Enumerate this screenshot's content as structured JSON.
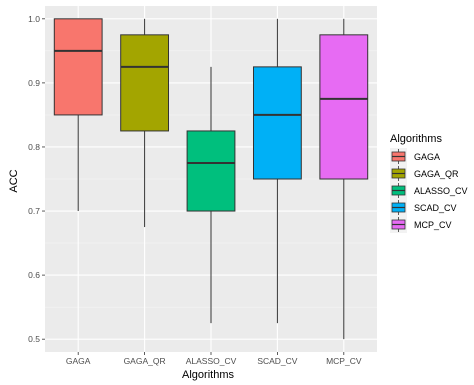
{
  "chart_data": {
    "type": "boxplot",
    "title": "",
    "xlabel": "Algorithms",
    "ylabel": "ACC",
    "ylim": [
      0.48,
      1.02
    ],
    "yticks": [
      "0.5",
      "0.6",
      "0.7",
      "0.8",
      "0.9",
      "1.0"
    ],
    "grid": true,
    "legend": {
      "title": "Algorithms",
      "position": "right"
    },
    "categories": [
      "GAGA",
      "GAGA_QR",
      "ALASSO_CV",
      "SCAD_CV",
      "MCP_CV"
    ],
    "colors": [
      "#F8766D",
      "#A3A500",
      "#00BF7D",
      "#00B0F6",
      "#E76BF3"
    ],
    "boxes": [
      {
        "name": "GAGA",
        "min": 0.7,
        "q1": 0.85,
        "median": 0.95,
        "q3": 1.0,
        "max": 1.0
      },
      {
        "name": "GAGA_QR",
        "min": 0.675,
        "q1": 0.825,
        "median": 0.925,
        "q3": 0.975,
        "max": 1.0
      },
      {
        "name": "ALASSO_CV",
        "min": 0.525,
        "q1": 0.7,
        "median": 0.775,
        "q3": 0.825,
        "max": 0.925
      },
      {
        "name": "SCAD_CV",
        "min": 0.525,
        "q1": 0.75,
        "median": 0.85,
        "q3": 0.925,
        "max": 1.0
      },
      {
        "name": "MCP_CV",
        "min": 0.5,
        "q1": 0.75,
        "median": 0.875,
        "q3": 0.975,
        "max": 1.0
      }
    ]
  }
}
